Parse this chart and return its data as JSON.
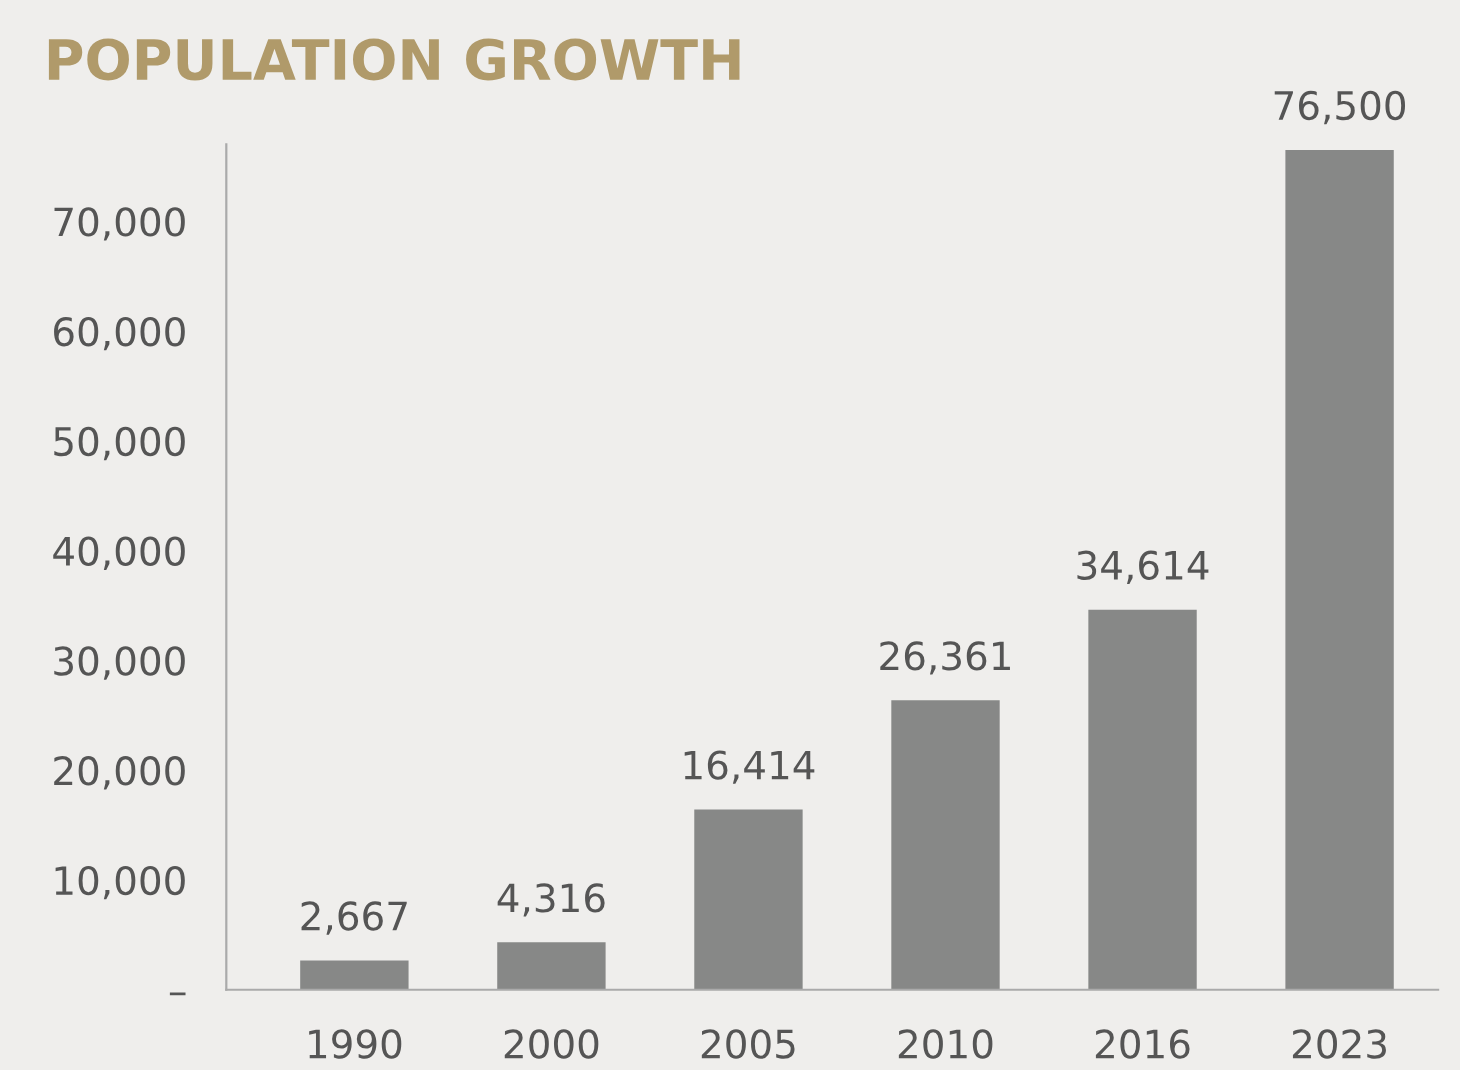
{
  "chart_data": {
    "type": "bar",
    "title": "POPULATION GROWTH",
    "categories": [
      "1990",
      "2000",
      "2005",
      "2010",
      "2016",
      "2023"
    ],
    "values": [
      2667,
      4316,
      16414,
      26361,
      34614,
      76500
    ],
    "color": "#878887",
    "value_labels": [
      "2,667",
      "4,316",
      "16,414",
      "26,361",
      "34,614",
      "76,500"
    ],
    "ylim": [
      0,
      77000
    ],
    "yticks": [
      {
        "value": 0,
        "label": "–"
      },
      {
        "value": 10000,
        "label": "10,000"
      },
      {
        "value": 20000,
        "label": "20,000"
      },
      {
        "value": 30000,
        "label": "30,000"
      },
      {
        "value": 40000,
        "label": "40,000"
      },
      {
        "value": 50000,
        "label": "50,000"
      },
      {
        "value": 60000,
        "label": "60,000"
      },
      {
        "value": 70000,
        "label": "70,000"
      }
    ],
    "grid": false,
    "legend": false
  }
}
